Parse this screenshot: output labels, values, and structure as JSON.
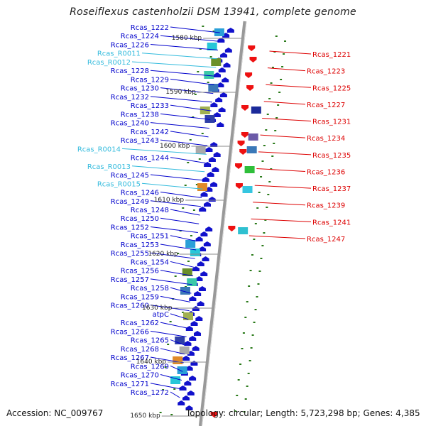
{
  "title": "Roseiflexus castenholzii DSM 13941, complete genome",
  "accession": "Accession: NC_009767",
  "topology": "Topology: circular; Length: 5,723,298 bp; Genes: 4,385",
  "colors": {
    "left_label": "#0000cc",
    "rna_label": "#33bbdd",
    "right_label": "#dd0000",
    "backbone": "#999999",
    "forward_gene": "#1111cc",
    "reverse_gene": "#ee1111",
    "tick_mark": "#2a7a1a"
  },
  "kbp_markers": [
    "1580 kbp",
    "1590 kbp",
    "1600 kbp",
    "1610 kbp",
    "1620 kbp",
    "1630 kbp",
    "1640 kbp",
    "1650 kbp"
  ],
  "left_labels": [
    {
      "text": "Rcas_1222",
      "kind": "gene"
    },
    {
      "text": "Rcas_1224",
      "kind": "gene"
    },
    {
      "text": "Rcas_1226",
      "kind": "gene"
    },
    {
      "text": "Rcas_R0011",
      "kind": "rna"
    },
    {
      "text": "Rcas_R0012",
      "kind": "rna"
    },
    {
      "text": "Rcas_1228",
      "kind": "gene"
    },
    {
      "text": "Rcas_1229",
      "kind": "gene"
    },
    {
      "text": "Rcas_1230",
      "kind": "gene"
    },
    {
      "text": "Rcas_1232",
      "kind": "gene"
    },
    {
      "text": "Rcas_1233",
      "kind": "gene"
    },
    {
      "text": "Rcas_1238",
      "kind": "gene"
    },
    {
      "text": "Rcas_1240",
      "kind": "gene"
    },
    {
      "text": "Rcas_1242",
      "kind": "gene"
    },
    {
      "text": "Rcas_1243",
      "kind": "gene"
    },
    {
      "text": "Rcas_R0014",
      "kind": "rna"
    },
    {
      "text": "Rcas_1244",
      "kind": "gene"
    },
    {
      "text": "Rcas_R0013",
      "kind": "rna"
    },
    {
      "text": "Rcas_1245",
      "kind": "gene"
    },
    {
      "text": "Rcas_R0015",
      "kind": "rna"
    },
    {
      "text": "Rcas_1246",
      "kind": "gene"
    },
    {
      "text": "Rcas_1249",
      "kind": "gene"
    },
    {
      "text": "Rcas_1248",
      "kind": "gene"
    },
    {
      "text": "Rcas_1250",
      "kind": "gene"
    },
    {
      "text": "Rcas_1252",
      "kind": "gene"
    },
    {
      "text": "Rcas_1251",
      "kind": "gene"
    },
    {
      "text": "Rcas_1253",
      "kind": "gene"
    },
    {
      "text": "Rcas_1255",
      "kind": "gene"
    },
    {
      "text": "Rcas_1254",
      "kind": "gene"
    },
    {
      "text": "Rcas_1256",
      "kind": "gene"
    },
    {
      "text": "Rcas_1257",
      "kind": "gene"
    },
    {
      "text": "Rcas_1258",
      "kind": "gene"
    },
    {
      "text": "Rcas_1259",
      "kind": "gene"
    },
    {
      "text": "Rcas_1260",
      "kind": "gene"
    },
    {
      "text": "atpC",
      "kind": "gene"
    },
    {
      "text": "Rcas_1262",
      "kind": "gene"
    },
    {
      "text": "Rcas_1266",
      "kind": "gene"
    },
    {
      "text": "Rcas_1265",
      "kind": "gene"
    },
    {
      "text": "Rcas_1268",
      "kind": "gene"
    },
    {
      "text": "Rcas_1267",
      "kind": "gene"
    },
    {
      "text": "Rcas_1269",
      "kind": "gene"
    },
    {
      "text": "Rcas_1270",
      "kind": "gene"
    },
    {
      "text": "Rcas_1271",
      "kind": "gene"
    },
    {
      "text": "Rcas_1272",
      "kind": "gene"
    }
  ],
  "right_labels": [
    "Rcas_1221",
    "Rcas_1223",
    "Rcas_1225",
    "Rcas_1227",
    "Rcas_1231",
    "Rcas_1234",
    "Rcas_1235",
    "Rcas_1236",
    "Rcas_1237",
    "Rcas_1239",
    "Rcas_1241",
    "Rcas_1247"
  ]
}
